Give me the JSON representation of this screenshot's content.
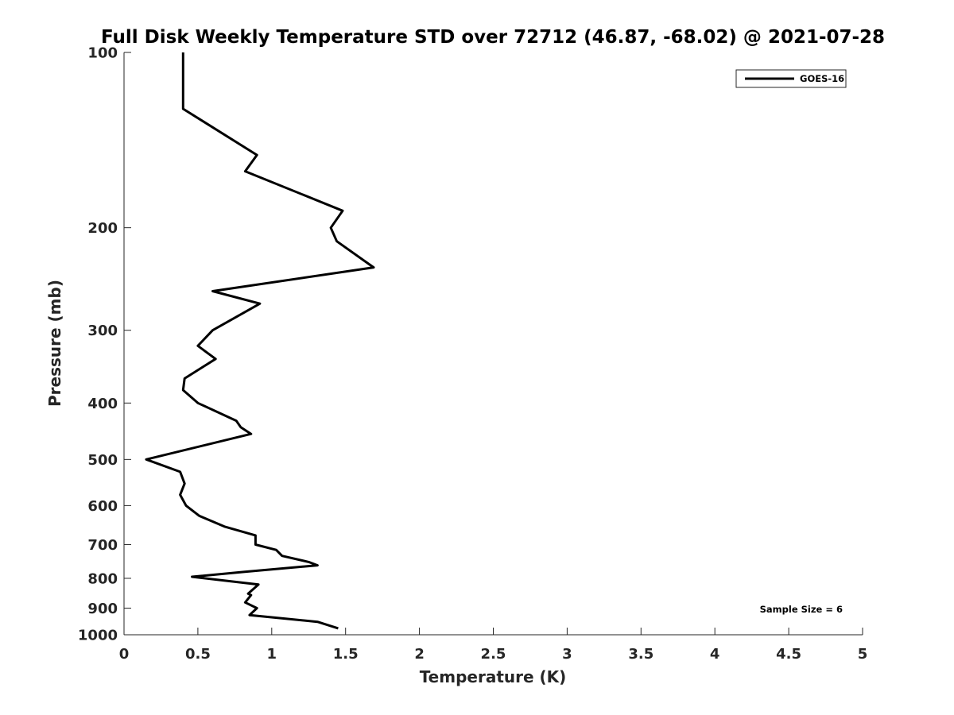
{
  "chart_data": {
    "type": "line",
    "title": "Full Disk Weekly Temperature STD over 72712 (46.87, -68.02) @ 2021-07-28",
    "xlabel": "Temperature (K)",
    "ylabel": "Pressure (mb)",
    "xlim": [
      0,
      5
    ],
    "ylim": [
      100,
      1000
    ],
    "y_scale": "log",
    "y_reversed": true,
    "x_ticks": [
      "0",
      "0.5",
      "1",
      "1.5",
      "2",
      "2.5",
      "3",
      "3.5",
      "4",
      "4.5",
      "5"
    ],
    "y_ticks": [
      "100",
      "200",
      "300",
      "400",
      "500",
      "600",
      "700",
      "800",
      "900",
      "1000"
    ],
    "grid": false,
    "legend_position": "top-right",
    "series": [
      {
        "name": "GOES-16",
        "color": "#000000",
        "x": [
          0.4,
          0.4,
          0.9,
          0.82,
          1.48,
          1.4,
          1.44,
          1.69,
          0.6,
          0.92,
          0.6,
          0.5,
          0.62,
          0.41,
          0.4,
          0.5,
          0.76,
          0.79,
          0.86,
          0.15,
          0.38,
          0.41,
          0.38,
          0.42,
          0.51,
          0.68,
          0.89,
          0.89,
          1.03,
          1.07,
          1.25,
          1.31,
          0.81,
          0.46,
          0.91,
          0.84,
          0.86,
          0.82,
          0.9,
          0.85,
          1.31,
          1.45
        ],
        "y": [
          100,
          125,
          150,
          160,
          187,
          200,
          211,
          234,
          257,
          270,
          300,
          319,
          336,
          363,
          380,
          400,
          429,
          440,
          452,
          500,
          525,
          550,
          575,
          600,
          625,
          652,
          675,
          700,
          715,
          732,
          750,
          760,
          780,
          795,
          820,
          850,
          855,
          880,
          900,
          925,
          950,
          975
        ]
      }
    ],
    "annotations": [
      {
        "text": "Sample Size = 6",
        "position": "bottom-right"
      }
    ]
  }
}
